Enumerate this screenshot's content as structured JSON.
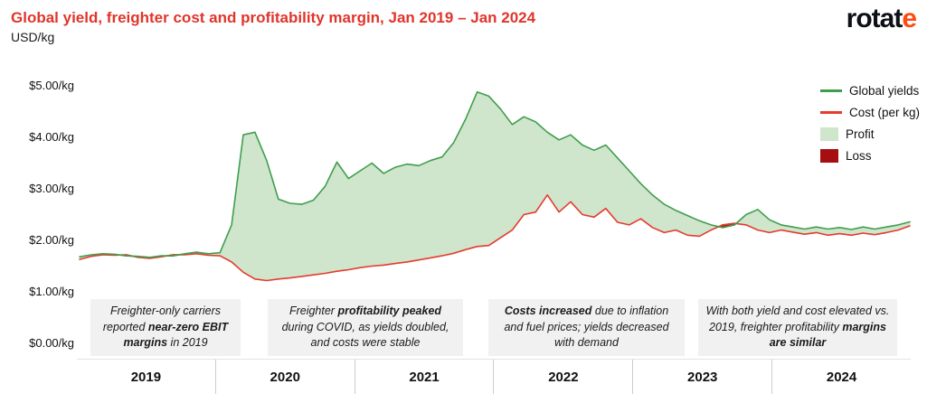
{
  "header": {
    "title": "Global yield, freighter cost and profitability margin, Jan 2019 – Jan 2024",
    "subtitle": "USD/kg",
    "title_color": "#e0352b",
    "logo": {
      "prefix": "rotat",
      "accent": "e",
      "accent_color": "#ff4a10"
    }
  },
  "legend": {
    "items": [
      {
        "label": "Global yields",
        "swatch": "line",
        "color": "#3f9e4d"
      },
      {
        "label": "Cost (per kg)",
        "swatch": "line",
        "color": "#e63b2e"
      },
      {
        "label": "Profit",
        "swatch": "rect",
        "color": "#cfe5cc"
      },
      {
        "label": "Loss",
        "swatch": "rect",
        "color": "#a60f12"
      }
    ]
  },
  "chart_data": {
    "type": "area",
    "title": "Global yield, freighter cost and profitability margin, Jan 2019 – Jan 2024",
    "ylabel": "USD/kg",
    "ylim": [
      0,
      5
    ],
    "y_ticks": [
      "$5.00/kg",
      "$4.00/kg",
      "$3.00/kg",
      "$2.00/kg",
      "$1.00/kg",
      "$0.00/kg"
    ],
    "y_tick_values": [
      5,
      4,
      3,
      2,
      1,
      0
    ],
    "x_year_labels": [
      "2019",
      "2020",
      "2021",
      "2022",
      "2023",
      "2024"
    ],
    "x_start": "2019-01",
    "x_interval": "monthly",
    "grid": false,
    "legend_position": "top-right",
    "profit_fill": "#cfe5cc",
    "loss_fill": "#a60f12",
    "series": [
      {
        "name": "Global yields",
        "color": "#3f9e4d",
        "values": [
          1.68,
          1.72,
          1.74,
          1.73,
          1.7,
          1.69,
          1.67,
          1.7,
          1.7,
          1.74,
          1.77,
          1.74,
          1.76,
          2.3,
          4.05,
          4.1,
          3.55,
          2.8,
          2.72,
          2.7,
          2.78,
          3.05,
          3.52,
          3.2,
          3.35,
          3.5,
          3.3,
          3.42,
          3.48,
          3.45,
          3.55,
          3.62,
          3.9,
          4.35,
          4.88,
          4.8,
          4.55,
          4.25,
          4.4,
          4.3,
          4.1,
          3.95,
          4.05,
          3.85,
          3.75,
          3.85,
          3.6,
          3.35,
          3.1,
          2.88,
          2.7,
          2.58,
          2.48,
          2.38,
          2.3,
          2.25,
          2.3,
          2.5,
          2.6,
          2.4,
          2.3,
          2.26,
          2.22,
          2.26,
          2.22,
          2.25,
          2.21,
          2.26,
          2.22,
          2.26,
          2.3,
          2.36
        ]
      },
      {
        "name": "Cost (per kg)",
        "color": "#e63b2e",
        "values": [
          1.63,
          1.69,
          1.72,
          1.71,
          1.72,
          1.67,
          1.65,
          1.68,
          1.72,
          1.72,
          1.74,
          1.71,
          1.7,
          1.58,
          1.38,
          1.25,
          1.22,
          1.25,
          1.27,
          1.3,
          1.33,
          1.36,
          1.4,
          1.43,
          1.47,
          1.5,
          1.52,
          1.55,
          1.58,
          1.62,
          1.66,
          1.7,
          1.75,
          1.82,
          1.88,
          1.9,
          2.05,
          2.2,
          2.5,
          2.55,
          2.88,
          2.55,
          2.75,
          2.5,
          2.45,
          2.62,
          2.35,
          2.3,
          2.42,
          2.25,
          2.15,
          2.2,
          2.1,
          2.08,
          2.2,
          2.3,
          2.33,
          2.3,
          2.2,
          2.15,
          2.2,
          2.16,
          2.12,
          2.15,
          2.1,
          2.13,
          2.1,
          2.14,
          2.11,
          2.15,
          2.2,
          2.28
        ]
      }
    ]
  },
  "annotations": [
    {
      "segments": [
        {
          "t": "Freighter-only carriers reported ",
          "b": false
        },
        {
          "t": "near-zero EBIT margins",
          "b": true
        },
        {
          "t": " in 2019",
          "b": false
        }
      ]
    },
    {
      "segments": [
        {
          "t": "Freighter ",
          "b": false
        },
        {
          "t": "profitability peaked",
          "b": true
        },
        {
          "t": " during COVID, as yields doubled, and costs were stable",
          "b": false
        }
      ]
    },
    {
      "segments": [
        {
          "t": "Costs increased",
          "b": true
        },
        {
          "t": " due to inflation and fuel prices; yields decreased with demand",
          "b": false
        }
      ]
    },
    {
      "segments": [
        {
          "t": "With both yield and cost elevated vs. 2019, freighter profitability ",
          "b": false
        },
        {
          "t": "margins are similar",
          "b": true
        }
      ]
    }
  ]
}
